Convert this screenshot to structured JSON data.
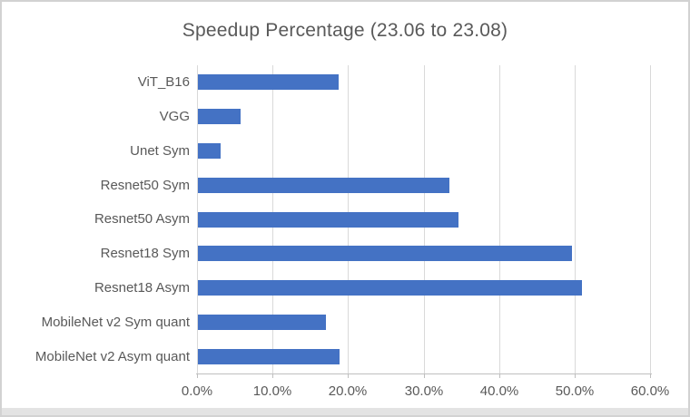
{
  "chart_data": {
    "type": "bar",
    "orientation": "horizontal",
    "title": "Speedup Percentage (23.06 to 23.08)",
    "categories": [
      "ViT_B16",
      "VGG",
      "Unet Sym",
      "Resnet50 Sym",
      "Resnet50 Asym",
      "Resnet18 Sym",
      "Resnet18 Asym",
      "MobileNet v2 Sym quant",
      "MobileNet v2 Asym quant"
    ],
    "values": [
      18.6,
      5.6,
      3.0,
      33.3,
      34.5,
      49.5,
      50.9,
      17.0,
      18.7
    ],
    "value_unit": "percent",
    "xlim": [
      0,
      60
    ],
    "x_tick_values": [
      0,
      10,
      20,
      30,
      40,
      50,
      60
    ],
    "x_tick_labels": [
      "0.0%",
      "10.0%",
      "20.0%",
      "30.0%",
      "40.0%",
      "50.0%",
      "60.0%"
    ],
    "grid": "vertical-on",
    "legend": "none",
    "colors": {
      "bar": "#4472C4",
      "gridline": "#D9D9D9",
      "axis_line": "#BFBFBF",
      "text": "#595959",
      "frame_border": "#D2D2D2",
      "bottom_strip": "#E3E3E3",
      "background": "#FFFFFF"
    }
  }
}
